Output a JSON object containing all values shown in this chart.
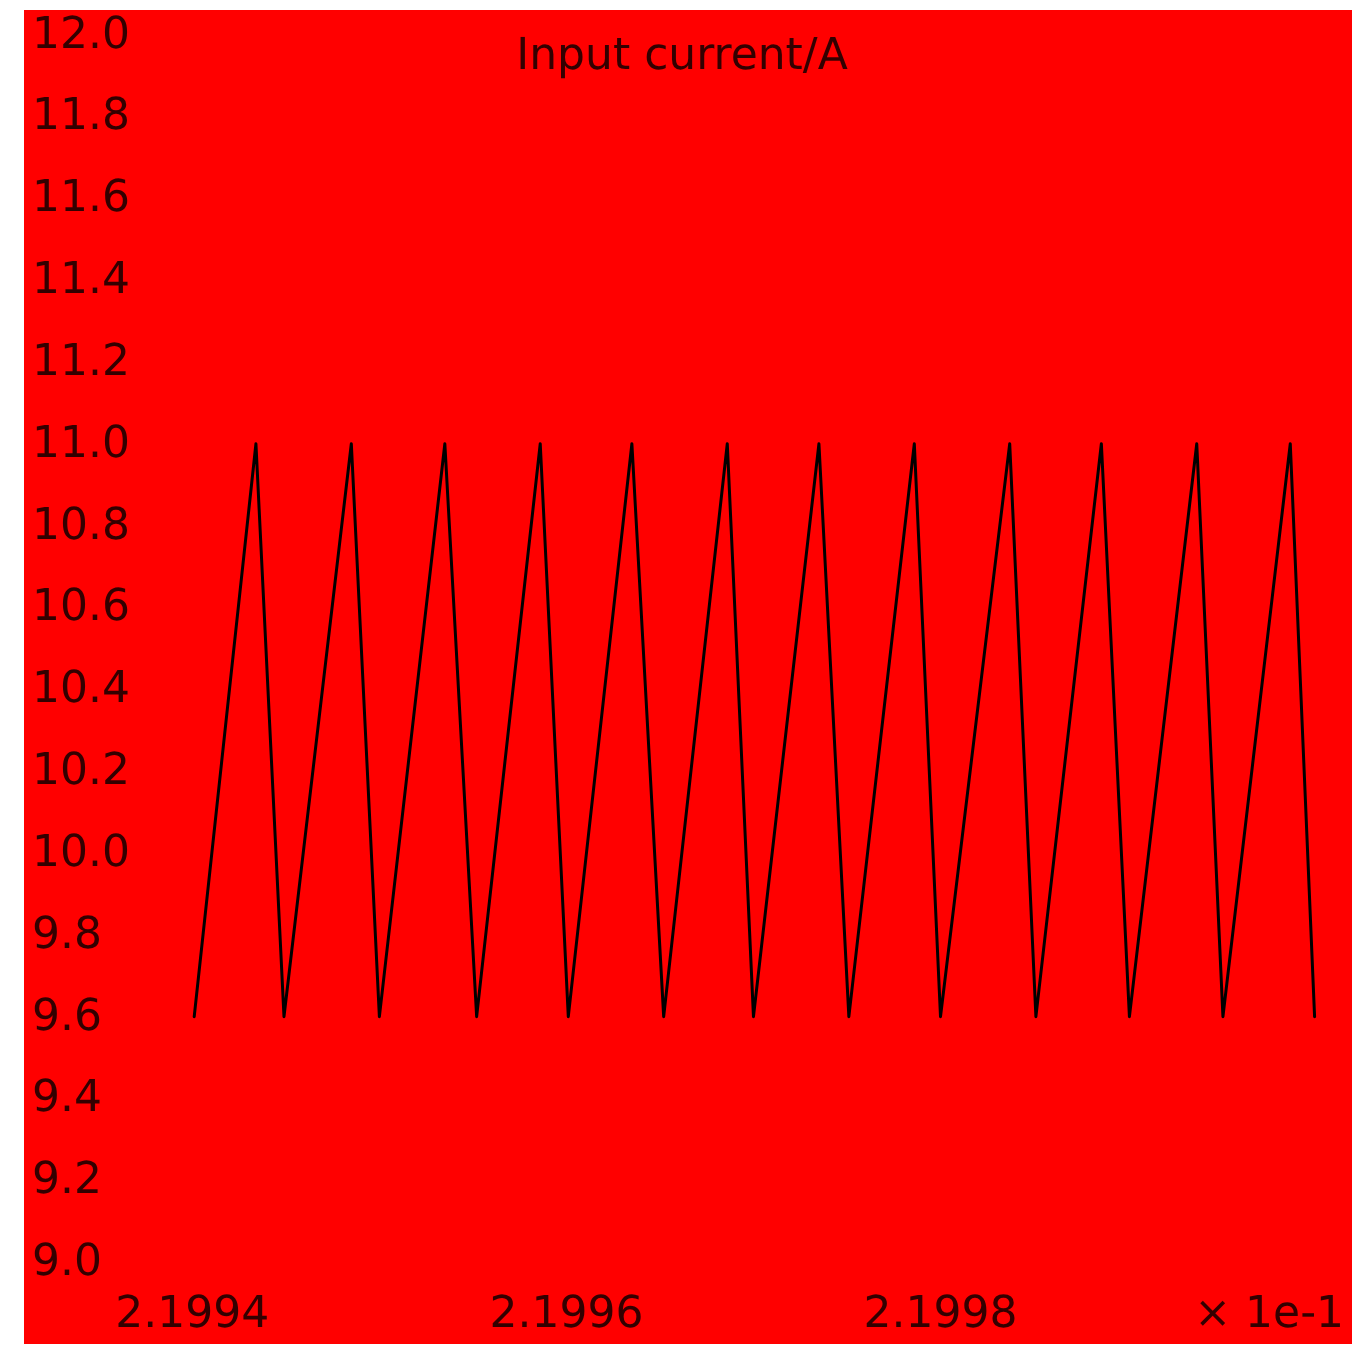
{
  "chart_data": {
    "type": "line",
    "title": "Input current/A",
    "xlabel": "× 1e-1",
    "x": [
      2.199401,
      2.199434,
      2.199449,
      2.199485,
      2.1995,
      2.199535,
      2.199552,
      2.199586,
      2.199601,
      2.199635,
      2.199652,
      2.199686,
      2.1997,
      2.199735,
      2.199751,
      2.199786,
      2.1998,
      2.199837,
      2.199851,
      2.199886,
      2.199901,
      2.199937,
      2.199951,
      2.199987,
      2.2
    ],
    "series": [
      {
        "color": "#000000",
        "values": [
          9.6,
          11.0,
          9.6,
          11.0,
          9.6,
          11.0,
          9.6,
          11.0,
          9.6,
          11.0,
          9.6,
          11.0,
          9.6,
          11.0,
          9.6,
          11.0,
          9.6,
          11.0,
          9.6,
          11.0,
          9.6,
          11.0,
          9.6,
          11.0,
          9.6
        ]
      }
    ],
    "xlim": [
      2.19931,
      2.20002
    ],
    "xticks": [
      2.1994,
      2.1996,
      2.1998
    ],
    "ylim": [
      8.8,
      12.06
    ],
    "yticks": [
      {
        "value": 9,
        "label": "9.0"
      },
      {
        "value": 9.2,
        "label": "9.2"
      },
      {
        "value": 9.4,
        "label": "9.4"
      },
      {
        "value": 9.6,
        "label": "9.6"
      },
      {
        "value": 9.8,
        "label": "9.8"
      },
      {
        "value": 10,
        "label": "10.0"
      },
      {
        "value": 10.2,
        "label": "10.2"
      },
      {
        "value": 10.4,
        "label": "10.4"
      },
      {
        "value": 10.6,
        "label": "10.6"
      },
      {
        "value": 10.8,
        "label": "10.8"
      },
      {
        "value": 11,
        "label": "11.0"
      },
      {
        "value": 11.2,
        "label": "11.2"
      },
      {
        "value": 11.4,
        "label": "11.4"
      },
      {
        "value": 11.6,
        "label": "11.6"
      },
      {
        "value": 11.8,
        "label": "11.8"
      },
      {
        "value": 12,
        "label": "12.0"
      }
    ],
    "grid": false,
    "marker": "none",
    "line_style": "solid"
  }
}
